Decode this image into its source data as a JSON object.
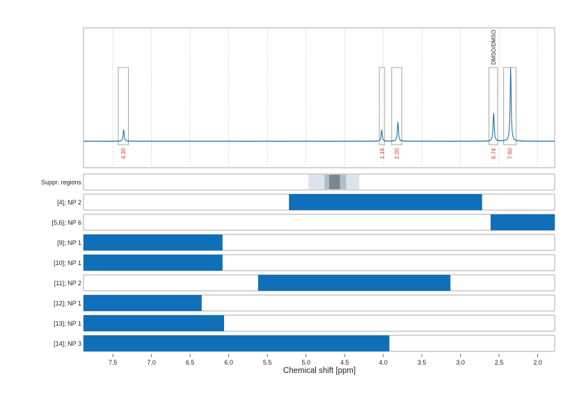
{
  "chart_data": {
    "type": "line",
    "xlabel": "Chemical shift [ppm]",
    "x_reversed": true,
    "xlim": [
      7.88,
      1.78
    ],
    "x_ticks": [
      "7.5",
      "7.0",
      "6.5",
      "6.0",
      "5.5",
      "5.0",
      "4.5",
      "4.0",
      "3.5",
      "3.0",
      "2.5",
      "2.0"
    ],
    "grid": true,
    "spectrum": {
      "baseline": 0.0,
      "peaks": [
        {
          "x": 7.36,
          "height": 0.11
        },
        {
          "x": 4.02,
          "height": 0.11
        },
        {
          "x": 3.81,
          "height": 0.18
        },
        {
          "x": 2.57,
          "height": 0.27
        },
        {
          "x": 2.35,
          "height": 0.69
        }
      ]
    },
    "integration_regions": [
      {
        "x1": 7.43,
        "x2": 7.3,
        "label": "4.30"
      },
      {
        "x1": 4.05,
        "x2": 3.98,
        "label": "1.18"
      },
      {
        "x1": 3.89,
        "x2": 3.76,
        "label": "2.00"
      },
      {
        "x1": 2.63,
        "x2": 2.52,
        "label": "6.74",
        "annotation": "DMSO/DMSO"
      },
      {
        "x1": 2.44,
        "x2": 2.28,
        "label": "7.60"
      }
    ],
    "suppression_regions": {
      "label": "Suppr. regions",
      "bands": [
        {
          "x1": 4.97,
          "x2": 4.31,
          "shade": "#dde3ea"
        },
        {
          "x1": 4.76,
          "x2": 4.48,
          "shade": "#b3bdc6"
        },
        {
          "x1": 4.7,
          "x2": 4.56,
          "shade": "#7a8791"
        }
      ]
    },
    "ranges": [
      {
        "label": "[4]; NP 2",
        "x1": 5.22,
        "x2": 2.72
      },
      {
        "label": "[5,6]; NP 6",
        "x1": 2.61,
        "x2": 1.78
      },
      {
        "label": "[9]; NP 1",
        "x1": 7.88,
        "x2": 6.08
      },
      {
        "label": "[10]; NP 1",
        "x1": 7.88,
        "x2": 6.08
      },
      {
        "label": "[11]; NP 2",
        "x1": 5.62,
        "x2": 3.13
      },
      {
        "label": "[12]; NP 1",
        "x1": 7.88,
        "x2": 6.35
      },
      {
        "label": "[13]; NP 1",
        "x1": 7.88,
        "x2": 6.06
      },
      {
        "label": "[14]; NP 3",
        "x1": 7.88,
        "x2": 3.92
      }
    ]
  },
  "colors": {
    "spectrum": "#1f6fa8",
    "range_bar": "#0f6fb8",
    "integral_label": "#e0302a",
    "frame": "#a9a9a9",
    "grid": "#c8c8c8"
  }
}
